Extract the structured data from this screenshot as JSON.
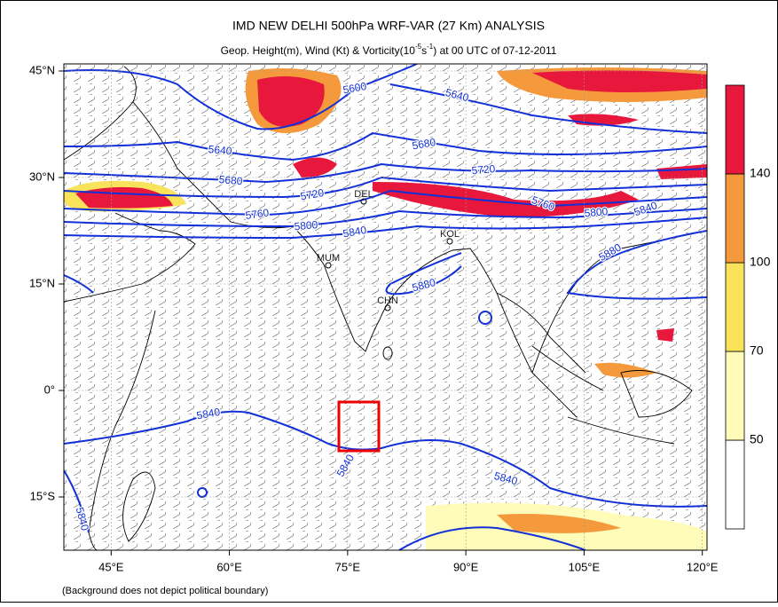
{
  "map": {
    "title": "IMD NEW DELHI 500hPa WRF-VAR (27 Km) ANALYSIS",
    "subtitle": [
      "Geop. Height(m), Wind (Kt) & Vorticity(10",
      "-5",
      "s",
      "-1",
      ") at 00 UTC of 07-12-2011"
    ],
    "xlim": [
      39,
      120.6
    ],
    "ylim": [
      -22.5,
      46
    ],
    "xticks": [
      {
        "value": 45,
        "label": "45°E"
      },
      {
        "value": 60,
        "label": "60°E"
      },
      {
        "value": 75,
        "label": "75°E"
      },
      {
        "value": 90,
        "label": "90°E"
      },
      {
        "value": 105,
        "label": "105°E"
      },
      {
        "value": 120,
        "label": "120°E"
      }
    ],
    "yticks": [
      {
        "value": 45,
        "label": "45°N"
      },
      {
        "value": 30,
        "label": "30°N"
      },
      {
        "value": 15,
        "label": "15°N"
      },
      {
        "value": 0,
        "label": "0°"
      },
      {
        "value": -15,
        "label": "15°S"
      }
    ],
    "colorbar": {
      "labels": [
        "50",
        "70",
        "100",
        "140"
      ],
      "colors": [
        "#ffffff",
        "#fffbb8",
        "#f8e35a",
        "#f49a3c",
        "#e8173c"
      ]
    },
    "contour_color": "#1230d8",
    "contour_labels": [
      "5600",
      "5640",
      "5640",
      "5680",
      "5680",
      "5720",
      "5720",
      "5760",
      "5760",
      "5800",
      "5800",
      "5840",
      "5840",
      "5880",
      "5880",
      "5840",
      "5840",
      "5840",
      "5840"
    ],
    "cities": [
      "DEL",
      "KOL",
      "MUM",
      "CHN"
    ],
    "footnote": "(Background does not depict political boundary)"
  }
}
